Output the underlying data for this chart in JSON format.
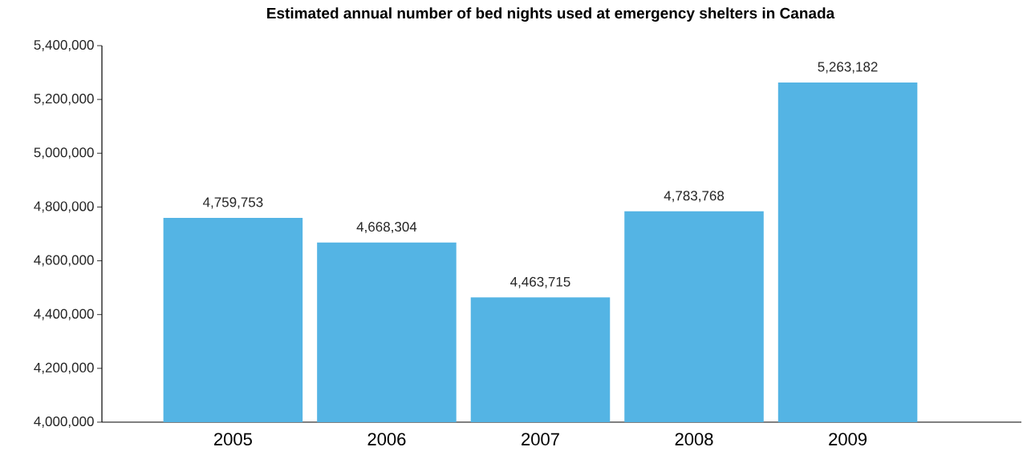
{
  "chart_data": {
    "type": "bar",
    "title": "Estimated annual number of bed nights used at emergency shelters in Canada",
    "categories": [
      "2005",
      "2006",
      "2007",
      "2008",
      "2009"
    ],
    "values": [
      4759753,
      4668304,
      4463715,
      4783768,
      5263182
    ],
    "value_labels": [
      "4,759,753",
      "4,668,304",
      "4,463,715",
      "4,783,768",
      "5,263,182"
    ],
    "color": "#54b4e4",
    "ylim": [
      4000000,
      5400000
    ],
    "yticks": [
      {
        "value": 4000000,
        "label": "4,000,000"
      },
      {
        "value": 4200000,
        "label": "4,200,000"
      },
      {
        "value": 4400000,
        "label": "4,400,000"
      },
      {
        "value": 4600000,
        "label": "4,600,000"
      },
      {
        "value": 4800000,
        "label": "4,800,000"
      },
      {
        "value": 5000000,
        "label": "5,000,000"
      },
      {
        "value": 5200000,
        "label": "5,200,000"
      },
      {
        "value": 5400000,
        "label": "5,400,000"
      }
    ],
    "tick_labels": "xy"
  }
}
